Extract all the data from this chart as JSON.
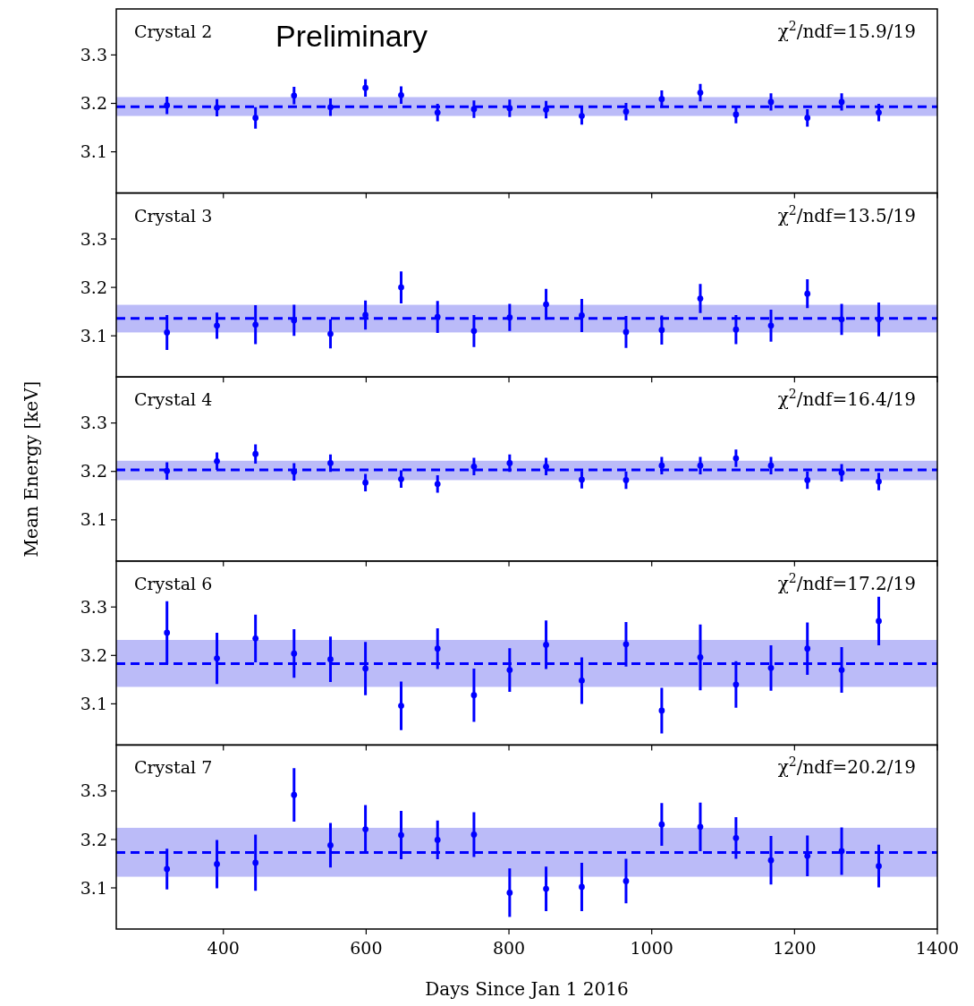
{
  "chart_data": [
    {
      "type": "scatter",
      "title": "Crystal 2",
      "annotations": [
        "χ$^{2}$/ndf=15.9/19",
        "Preliminary"
      ],
      "x": [
        321,
        391,
        445,
        499,
        550,
        599,
        649,
        700,
        751,
        801,
        852,
        902,
        964,
        1014,
        1068,
        1118,
        1167,
        1218,
        1266,
        1318
      ],
      "series": [
        {
          "color": "#0000ff",
          "values": [
            3.196,
            3.191,
            3.17,
            3.216,
            3.192,
            3.232,
            3.217,
            3.181,
            3.188,
            3.19,
            3.187,
            3.174,
            3.183,
            3.209,
            3.222,
            3.177,
            3.203,
            3.17,
            3.203,
            3.181
          ],
          "errors": [
            0.018,
            0.018,
            0.022,
            0.018,
            0.018,
            0.018,
            0.018,
            0.018,
            0.018,
            0.018,
            0.018,
            0.018,
            0.018,
            0.018,
            0.018,
            0.018,
            0.018,
            0.018,
            0.018,
            0.018
          ]
        }
      ],
      "ref_lines": [
        {
          "axis": "y",
          "value": 3.193,
          "color": "#0000ff",
          "line_style": "dashed"
        }
      ],
      "bands": [
        {
          "axis": "y",
          "from": 3.174,
          "to": 3.213,
          "color": "#bbbbf8"
        }
      ],
      "xlim": [
        250,
        1400
      ],
      "xticks": [
        400,
        600,
        800,
        1000,
        1200,
        1400
      ],
      "ylim": [
        3.015,
        3.395
      ],
      "yticks": [
        3.1,
        3.2,
        3.3
      ],
      "tick_labels": "y",
      "marker": "circle"
    },
    {
      "type": "scatter",
      "title": "Crystal 3",
      "annotations": [
        "χ$^{2}$/ndf=13.5/19"
      ],
      "x": [
        321,
        391,
        445,
        499,
        550,
        599,
        649,
        700,
        751,
        801,
        852,
        902,
        964,
        1014,
        1068,
        1118,
        1167,
        1218,
        1266,
        1318
      ],
      "series": [
        {
          "color": "#0000ff",
          "values": [
            3.107,
            3.121,
            3.123,
            3.132,
            3.104,
            3.143,
            3.2,
            3.139,
            3.11,
            3.138,
            3.165,
            3.142,
            3.108,
            3.112,
            3.177,
            3.113,
            3.121,
            3.187,
            3.134,
            3.134
          ],
          "errors": [
            0.036,
            0.027,
            0.04,
            0.032,
            0.03,
            0.03,
            0.033,
            0.033,
            0.033,
            0.028,
            0.032,
            0.034,
            0.033,
            0.03,
            0.03,
            0.03,
            0.033,
            0.03,
            0.032,
            0.035
          ]
        }
      ],
      "ref_lines": [
        {
          "axis": "y",
          "value": 3.136,
          "color": "#0000ff",
          "line_style": "dashed"
        }
      ],
      "bands": [
        {
          "axis": "y",
          "from": 3.107,
          "to": 3.164,
          "color": "#bbbbf8"
        }
      ],
      "xlim": [
        250,
        1400
      ],
      "xticks": [
        400,
        600,
        800,
        1000,
        1200,
        1400
      ],
      "ylim": [
        3.015,
        3.395
      ],
      "yticks": [
        3.1,
        3.2,
        3.3
      ],
      "tick_labels": "y",
      "marker": "circle"
    },
    {
      "type": "scatter",
      "title": "Crystal 4",
      "ylabel": "Mean Energy [keV]",
      "annotations": [
        "χ$^{2}$/ndf=16.4/19"
      ],
      "x": [
        321,
        391,
        445,
        499,
        550,
        599,
        649,
        700,
        751,
        801,
        852,
        902,
        964,
        1014,
        1068,
        1118,
        1167,
        1218,
        1266,
        1318
      ],
      "series": [
        {
          "color": "#0000ff",
          "values": [
            3.201,
            3.221,
            3.236,
            3.199,
            3.217,
            3.177,
            3.184,
            3.174,
            3.21,
            3.217,
            3.21,
            3.183,
            3.182,
            3.212,
            3.212,
            3.227,
            3.212,
            3.182,
            3.197,
            3.179
          ],
          "errors": [
            0.018,
            0.018,
            0.02,
            0.018,
            0.018,
            0.018,
            0.018,
            0.018,
            0.018,
            0.018,
            0.018,
            0.018,
            0.018,
            0.018,
            0.018,
            0.018,
            0.018,
            0.018,
            0.018,
            0.018
          ]
        }
      ],
      "ref_lines": [
        {
          "axis": "y",
          "value": 3.203,
          "color": "#0000ff",
          "line_style": "dashed"
        }
      ],
      "bands": [
        {
          "axis": "y",
          "from": 3.182,
          "to": 3.222,
          "color": "#bbbbf8"
        }
      ],
      "xlim": [
        250,
        1400
      ],
      "xticks": [
        400,
        600,
        800,
        1000,
        1200,
        1400
      ],
      "ylim": [
        3.015,
        3.395
      ],
      "yticks": [
        3.1,
        3.2,
        3.3
      ],
      "tick_labels": "y",
      "marker": "circle"
    },
    {
      "type": "scatter",
      "title": "Crystal 6",
      "annotations": [
        "χ$^{2}$/ndf=17.2/19"
      ],
      "x": [
        321,
        391,
        445,
        499,
        550,
        599,
        649,
        700,
        751,
        801,
        852,
        902,
        964,
        1014,
        1068,
        1118,
        1167,
        1218,
        1266,
        1318
      ],
      "series": [
        {
          "color": "#0000ff",
          "values": [
            3.247,
            3.194,
            3.235,
            3.204,
            3.192,
            3.173,
            3.096,
            3.214,
            3.118,
            3.17,
            3.222,
            3.148,
            3.223,
            3.086,
            3.196,
            3.14,
            3.174,
            3.214,
            3.17,
            3.271
          ],
          "errors": [
            0.065,
            0.053,
            0.049,
            0.05,
            0.047,
            0.055,
            0.05,
            0.042,
            0.055,
            0.045,
            0.05,
            0.048,
            0.046,
            0.047,
            0.068,
            0.048,
            0.047,
            0.054,
            0.047,
            0.05
          ]
        }
      ],
      "ref_lines": [
        {
          "axis": "y",
          "value": 3.183,
          "color": "#0000ff",
          "line_style": "dashed"
        }
      ],
      "bands": [
        {
          "axis": "y",
          "from": 3.135,
          "to": 3.232,
          "color": "#bbbbf8"
        }
      ],
      "xlim": [
        250,
        1400
      ],
      "xticks": [
        400,
        600,
        800,
        1000,
        1200,
        1400
      ],
      "ylim": [
        3.015,
        3.395
      ],
      "yticks": [
        3.1,
        3.2,
        3.3
      ],
      "tick_labels": "y",
      "marker": "circle"
    },
    {
      "type": "scatter",
      "title": "Crystal 7",
      "xlabel": "Days Since Jan 1 2016",
      "annotations": [
        "χ$^{2}$/ndf=20.2/19"
      ],
      "x": [
        321,
        391,
        445,
        499,
        550,
        599,
        649,
        700,
        751,
        801,
        852,
        902,
        964,
        1014,
        1068,
        1118,
        1167,
        1218,
        1266,
        1318
      ],
      "series": [
        {
          "color": "#0000ff",
          "values": [
            3.139,
            3.149,
            3.152,
            3.292,
            3.188,
            3.221,
            3.209,
            3.199,
            3.21,
            3.09,
            3.098,
            3.102,
            3.114,
            3.231,
            3.226,
            3.203,
            3.157,
            3.166,
            3.176,
            3.145
          ],
          "errors": [
            0.042,
            0.05,
            0.058,
            0.055,
            0.046,
            0.05,
            0.05,
            0.04,
            0.046,
            0.05,
            0.046,
            0.05,
            0.046,
            0.044,
            0.05,
            0.043,
            0.05,
            0.042,
            0.049,
            0.044
          ]
        }
      ],
      "ref_lines": [
        {
          "axis": "y",
          "value": 3.173,
          "color": "#0000ff",
          "line_style": "dashed"
        }
      ],
      "bands": [
        {
          "axis": "y",
          "from": 3.123,
          "to": 3.224,
          "color": "#bbbbf8"
        }
      ],
      "xlim": [
        250,
        1400
      ],
      "xticks": [
        400,
        600,
        800,
        1000,
        1200,
        1400
      ],
      "ylim": [
        3.015,
        3.395
      ],
      "yticks": [
        3.1,
        3.2,
        3.3
      ],
      "marker": "circle"
    }
  ]
}
